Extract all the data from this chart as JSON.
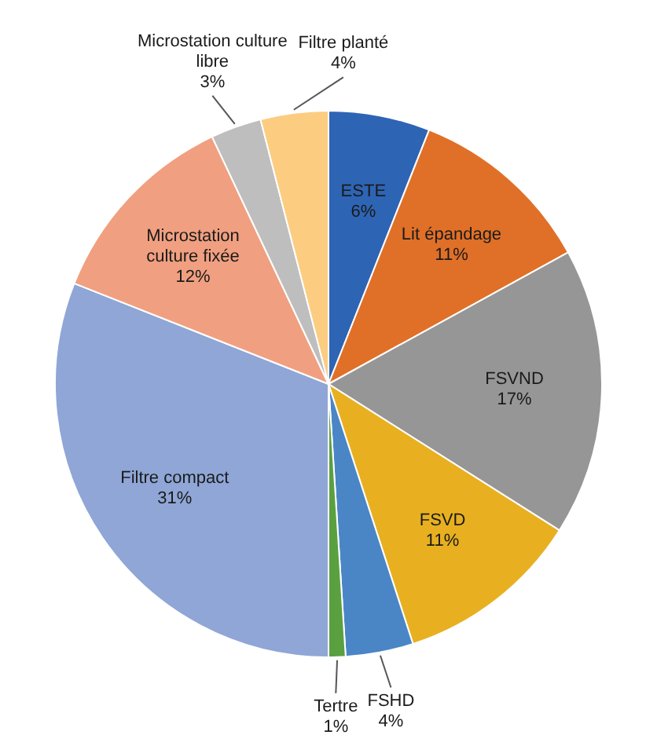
{
  "chart_data": {
    "type": "pie",
    "categories": [
      "ESTE",
      "Lit épandage",
      "FSVND",
      "FSVD",
      "FSHD",
      "Tertre",
      "Filtre compact",
      "Microstation culture fixée",
      "Microstation culture libre",
      "Filtre planté"
    ],
    "values": [
      6,
      11,
      17,
      11,
      4,
      1,
      31,
      12,
      3,
      4
    ],
    "colors": [
      "#2e64b4",
      "#e07028",
      "#969696",
      "#e8b020",
      "#4a86c6",
      "#5aa040",
      "#8fa6d6",
      "#f0a080",
      "#bebebe",
      "#fccc80"
    ],
    "value_labels": [
      "6%",
      "11%",
      "17%",
      "11%",
      "4%",
      "1%",
      "31%",
      "12%",
      "3%",
      "4%"
    ]
  }
}
